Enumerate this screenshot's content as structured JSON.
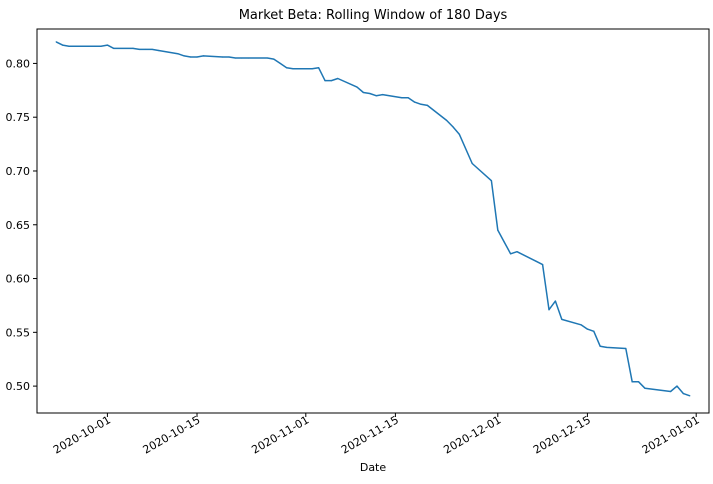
{
  "chart_data": {
    "type": "line",
    "title": "Market Beta: Rolling Window of 180 Days",
    "xlabel": "Date",
    "ylabel": "",
    "xlim": [
      "2020-09-20",
      "2021-01-03"
    ],
    "ylim": [
      0.475,
      0.832
    ],
    "x_ticks": [
      "2020-10-01",
      "2020-10-15",
      "2020-11-01",
      "2020-11-15",
      "2020-12-01",
      "2020-12-15",
      "2021-01-01"
    ],
    "y_ticks": [
      0.5,
      0.55,
      0.6,
      0.65,
      0.7,
      0.75,
      0.8
    ],
    "grid": false,
    "line_color": "#1f77b4",
    "series": [
      {
        "x": [
          "2020-09-23",
          "2020-09-24",
          "2020-09-25",
          "2020-09-28",
          "2020-09-29",
          "2020-09-30",
          "2020-10-01",
          "2020-10-02",
          "2020-10-05",
          "2020-10-06",
          "2020-10-07",
          "2020-10-08",
          "2020-10-09",
          "2020-10-12",
          "2020-10-13",
          "2020-10-14",
          "2020-10-15",
          "2020-10-16",
          "2020-10-19",
          "2020-10-20",
          "2020-10-21",
          "2020-10-22",
          "2020-10-23",
          "2020-10-26",
          "2020-10-27",
          "2020-10-28",
          "2020-10-29",
          "2020-10-30",
          "2020-11-02",
          "2020-11-03",
          "2020-11-04",
          "2020-11-05",
          "2020-11-06",
          "2020-11-09",
          "2020-11-10",
          "2020-11-11",
          "2020-11-12",
          "2020-11-13",
          "2020-11-16",
          "2020-11-17",
          "2020-11-18",
          "2020-11-19",
          "2020-11-20",
          "2020-11-23",
          "2020-11-24",
          "2020-11-25",
          "2020-11-27",
          "2020-11-30",
          "2020-12-01",
          "2020-12-02",
          "2020-12-03",
          "2020-12-04",
          "2020-12-07",
          "2020-12-08",
          "2020-12-09",
          "2020-12-10",
          "2020-12-11",
          "2020-12-14",
          "2020-12-15",
          "2020-12-16",
          "2020-12-17",
          "2020-12-18",
          "2020-12-21",
          "2020-12-22",
          "2020-12-23",
          "2020-12-24",
          "2020-12-28",
          "2020-12-29",
          "2020-12-30",
          "2020-12-31"
        ],
        "values": [
          0.82,
          0.817,
          0.816,
          0.816,
          0.816,
          0.816,
          0.817,
          0.814,
          0.814,
          0.813,
          0.813,
          0.813,
          0.812,
          0.809,
          0.807,
          0.806,
          0.806,
          0.807,
          0.806,
          0.806,
          0.805,
          0.805,
          0.805,
          0.805,
          0.804,
          0.8,
          0.796,
          0.795,
          0.795,
          0.796,
          0.784,
          0.784,
          0.786,
          0.778,
          0.773,
          0.772,
          0.77,
          0.771,
          0.768,
          0.768,
          0.764,
          0.762,
          0.761,
          0.747,
          0.741,
          0.734,
          0.707,
          0.691,
          0.645,
          0.634,
          0.623,
          0.625,
          0.616,
          0.613,
          0.571,
          0.579,
          0.562,
          0.557,
          0.553,
          0.551,
          0.537,
          0.536,
          0.535,
          0.504,
          0.504,
          0.498,
          0.495,
          0.5,
          0.493,
          0.491
        ]
      }
    ]
  }
}
